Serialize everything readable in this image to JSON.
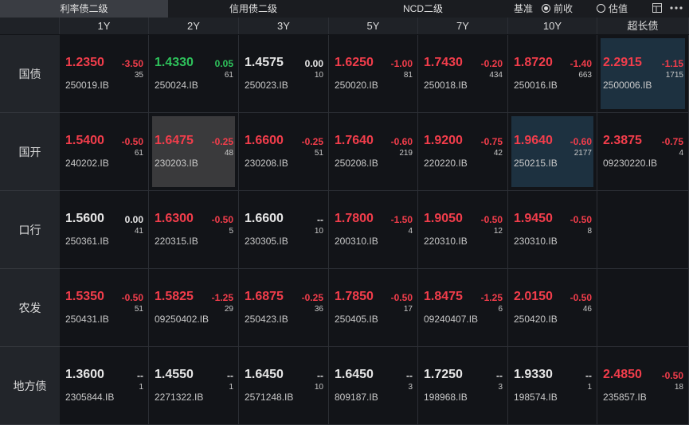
{
  "tabs": [
    {
      "label": "利率债二级",
      "active": true
    },
    {
      "label": "信用债二级",
      "active": false
    },
    {
      "label": "NCD二级",
      "active": false
    }
  ],
  "benchmark": {
    "label": "基准",
    "options": [
      {
        "label": "前收",
        "selected": true
      },
      {
        "label": "估值",
        "selected": false
      }
    ]
  },
  "columns": [
    "1Y",
    "2Y",
    "3Y",
    "5Y",
    "7Y",
    "10Y",
    "超长债"
  ],
  "rows": [
    {
      "label": "国债",
      "cells": [
        {
          "price": "1.2350",
          "change": "-3.50",
          "volume": "35",
          "code": "250019.IB",
          "color": "#f23d4b"
        },
        {
          "price": "1.4330",
          "change": "0.05",
          "volume": "61",
          "code": "250024.IB",
          "color": "#2ec25b"
        },
        {
          "price": "1.4575",
          "change": "0.00",
          "volume": "10",
          "code": "250023.IB",
          "color": "#e6e6e6"
        },
        {
          "price": "1.6250",
          "change": "-1.00",
          "volume": "81",
          "code": "250020.IB",
          "color": "#f23d4b"
        },
        {
          "price": "1.7430",
          "change": "-0.20",
          "volume": "434",
          "code": "250018.IB",
          "color": "#f23d4b"
        },
        {
          "price": "1.8720",
          "change": "-1.40",
          "volume": "663",
          "code": "250016.IB",
          "color": "#f23d4b"
        },
        {
          "price": "2.2915",
          "change": "-1.15",
          "volume": "1715",
          "code": "2500006.IB",
          "color": "#f23d4b",
          "background": "#1d3140"
        }
      ]
    },
    {
      "label": "国开",
      "cells": [
        {
          "price": "1.5400",
          "change": "-0.50",
          "volume": "61",
          "code": "240202.IB",
          "color": "#f23d4b"
        },
        {
          "price": "1.6475",
          "change": "-0.25",
          "volume": "48",
          "code": "230203.IB",
          "color": "#f23d4b",
          "background": "#3a3a3c"
        },
        {
          "price": "1.6600",
          "change": "-0.25",
          "volume": "51",
          "code": "230208.IB",
          "color": "#f23d4b"
        },
        {
          "price": "1.7640",
          "change": "-0.60",
          "volume": "219",
          "code": "250208.IB",
          "color": "#f23d4b"
        },
        {
          "price": "1.9200",
          "change": "-0.75",
          "volume": "42",
          "code": "220220.IB",
          "color": "#f23d4b"
        },
        {
          "price": "1.9640",
          "change": "-0.60",
          "volume": "2177",
          "code": "250215.IB",
          "color": "#f23d4b",
          "background": "#1d3140"
        },
        {
          "price": "2.3875",
          "change": "-0.75",
          "volume": "4",
          "code": "09230220.IB",
          "color": "#f23d4b"
        }
      ]
    },
    {
      "label": "口行",
      "cells": [
        {
          "price": "1.5600",
          "change": "0.00",
          "volume": "41",
          "code": "250361.IB",
          "color": "#e6e6e6"
        },
        {
          "price": "1.6300",
          "change": "-0.50",
          "volume": "5",
          "code": "220315.IB",
          "color": "#f23d4b"
        },
        {
          "price": "1.6600",
          "change": "--",
          "volume": "10",
          "code": "230305.IB",
          "color": "#e6e6e6"
        },
        {
          "price": "1.7800",
          "change": "-1.50",
          "volume": "4",
          "code": "200310.IB",
          "color": "#f23d4b"
        },
        {
          "price": "1.9050",
          "change": "-0.50",
          "volume": "12",
          "code": "220310.IB",
          "color": "#f23d4b"
        },
        {
          "price": "1.9450",
          "change": "-0.50",
          "volume": "8",
          "code": "230310.IB",
          "color": "#f23d4b"
        },
        null
      ]
    },
    {
      "label": "农发",
      "cells": [
        {
          "price": "1.5350",
          "change": "-0.50",
          "volume": "51",
          "code": "250431.IB",
          "color": "#f23d4b"
        },
        {
          "price": "1.5825",
          "change": "-1.25",
          "volume": "29",
          "code": "09250402.IB",
          "color": "#f23d4b"
        },
        {
          "price": "1.6875",
          "change": "-0.25",
          "volume": "36",
          "code": "250423.IB",
          "color": "#f23d4b"
        },
        {
          "price": "1.7850",
          "change": "-0.50",
          "volume": "17",
          "code": "250405.IB",
          "color": "#f23d4b"
        },
        {
          "price": "1.8475",
          "change": "-1.25",
          "volume": "6",
          "code": "09240407.IB",
          "color": "#f23d4b"
        },
        {
          "price": "2.0150",
          "change": "-0.50",
          "volume": "46",
          "code": "250420.IB",
          "color": "#f23d4b"
        },
        null
      ]
    },
    {
      "label": "地方债",
      "cells": [
        {
          "price": "1.3600",
          "change": "--",
          "volume": "1",
          "code": "2305844.IB",
          "color": "#e6e6e6"
        },
        {
          "price": "1.4550",
          "change": "--",
          "volume": "1",
          "code": "2271322.IB",
          "color": "#e6e6e6"
        },
        {
          "price": "1.6450",
          "change": "--",
          "volume": "10",
          "code": "2571248.IB",
          "color": "#e6e6e6"
        },
        {
          "price": "1.6450",
          "change": "--",
          "volume": "3",
          "code": "809187.IB",
          "color": "#e6e6e6"
        },
        {
          "price": "1.7250",
          "change": "--",
          "volume": "3",
          "code": "198968.IB",
          "color": "#e6e6e6"
        },
        {
          "price": "1.9330",
          "change": "--",
          "volume": "1",
          "code": "198574.IB",
          "color": "#e6e6e6"
        },
        {
          "price": "2.4850",
          "change": "-0.50",
          "volume": "18",
          "code": "235857.IB",
          "color": "#f23d4b"
        }
      ]
    }
  ]
}
